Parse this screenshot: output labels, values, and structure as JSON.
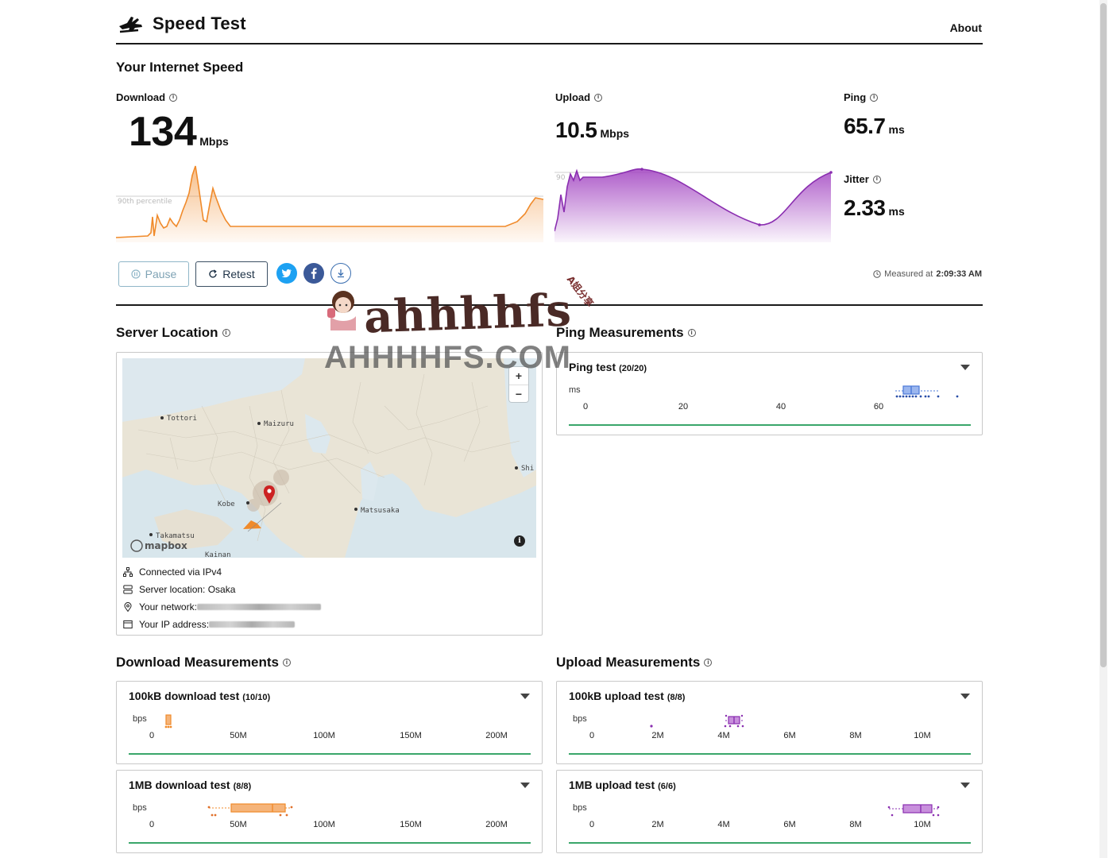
{
  "header": {
    "title": "Speed Test",
    "about": "About"
  },
  "speed": {
    "section_title": "Your Internet Speed",
    "download": {
      "label": "Download",
      "value": "134",
      "unit": "Mbps",
      "percentile_label": "90th percentile"
    },
    "upload": {
      "label": "Upload",
      "value": "10.5",
      "unit": "Mbps",
      "percentile_label": "90"
    },
    "ping": {
      "label": "Ping",
      "value": "65.7",
      "unit": "ms"
    },
    "jitter": {
      "label": "Jitter",
      "value": "2.33",
      "unit": "ms"
    }
  },
  "controls": {
    "pause": "Pause",
    "retest": "Retest",
    "share_twitter": "twitter-icon",
    "share_facebook": "facebook-icon",
    "download_results": "download-icon",
    "measured_prefix": "Measured at",
    "measured_time": "2:09:33 AM"
  },
  "server": {
    "section_title": "Server Location",
    "map_labels": {
      "tottori": "Tottori",
      "maizuru": "Maizuru",
      "kobe": "Kobe",
      "matsusaka": "Matsusaka",
      "takamatsu": "Takamatsu",
      "kainan": "Kainan",
      "shi": "Shi",
      "mapbox": "mapbox"
    },
    "zoom_in": "+",
    "zoom_out": "−",
    "connected": "Connected via IPv4",
    "location": "Server location: Osaka",
    "network_label": "Your network:",
    "ip_label": "Your IP address:"
  },
  "ping_measurements": {
    "section_title": "Ping Measurements",
    "card": {
      "title": "Ping test",
      "count": "(20/20)",
      "unit": "ms",
      "ticks": [
        "0",
        "20",
        "40",
        "60"
      ]
    }
  },
  "download_measurements": {
    "section_title": "Download Measurements",
    "cards": [
      {
        "title": "100kB download test",
        "count": "(10/10)",
        "unit": "bps",
        "ticks": [
          "0",
          "50M",
          "100M",
          "150M",
          "200M"
        ]
      },
      {
        "title": "1MB download test",
        "count": "(8/8)",
        "unit": "bps",
        "ticks": [
          "0",
          "50M",
          "100M",
          "150M",
          "200M"
        ]
      }
    ]
  },
  "upload_measurements": {
    "section_title": "Upload Measurements",
    "cards": [
      {
        "title": "100kB upload test",
        "count": "(8/8)",
        "unit": "bps",
        "ticks": [
          "0",
          "2M",
          "4M",
          "6M",
          "8M",
          "10M"
        ]
      },
      {
        "title": "1MB upload test",
        "count": "(6/6)",
        "unit": "bps",
        "ticks": [
          "0",
          "2M",
          "4M",
          "6M",
          "8M",
          "10M"
        ]
      }
    ]
  },
  "watermark": {
    "script": "ahhhhfs",
    "domain": "AHHHHFS.COM",
    "tag": "A姐分享"
  },
  "colors": {
    "download": "#f08a2a",
    "upload": "#a040c0",
    "ping": "#4a78d8",
    "accent_green": "#3aa66a"
  }
}
